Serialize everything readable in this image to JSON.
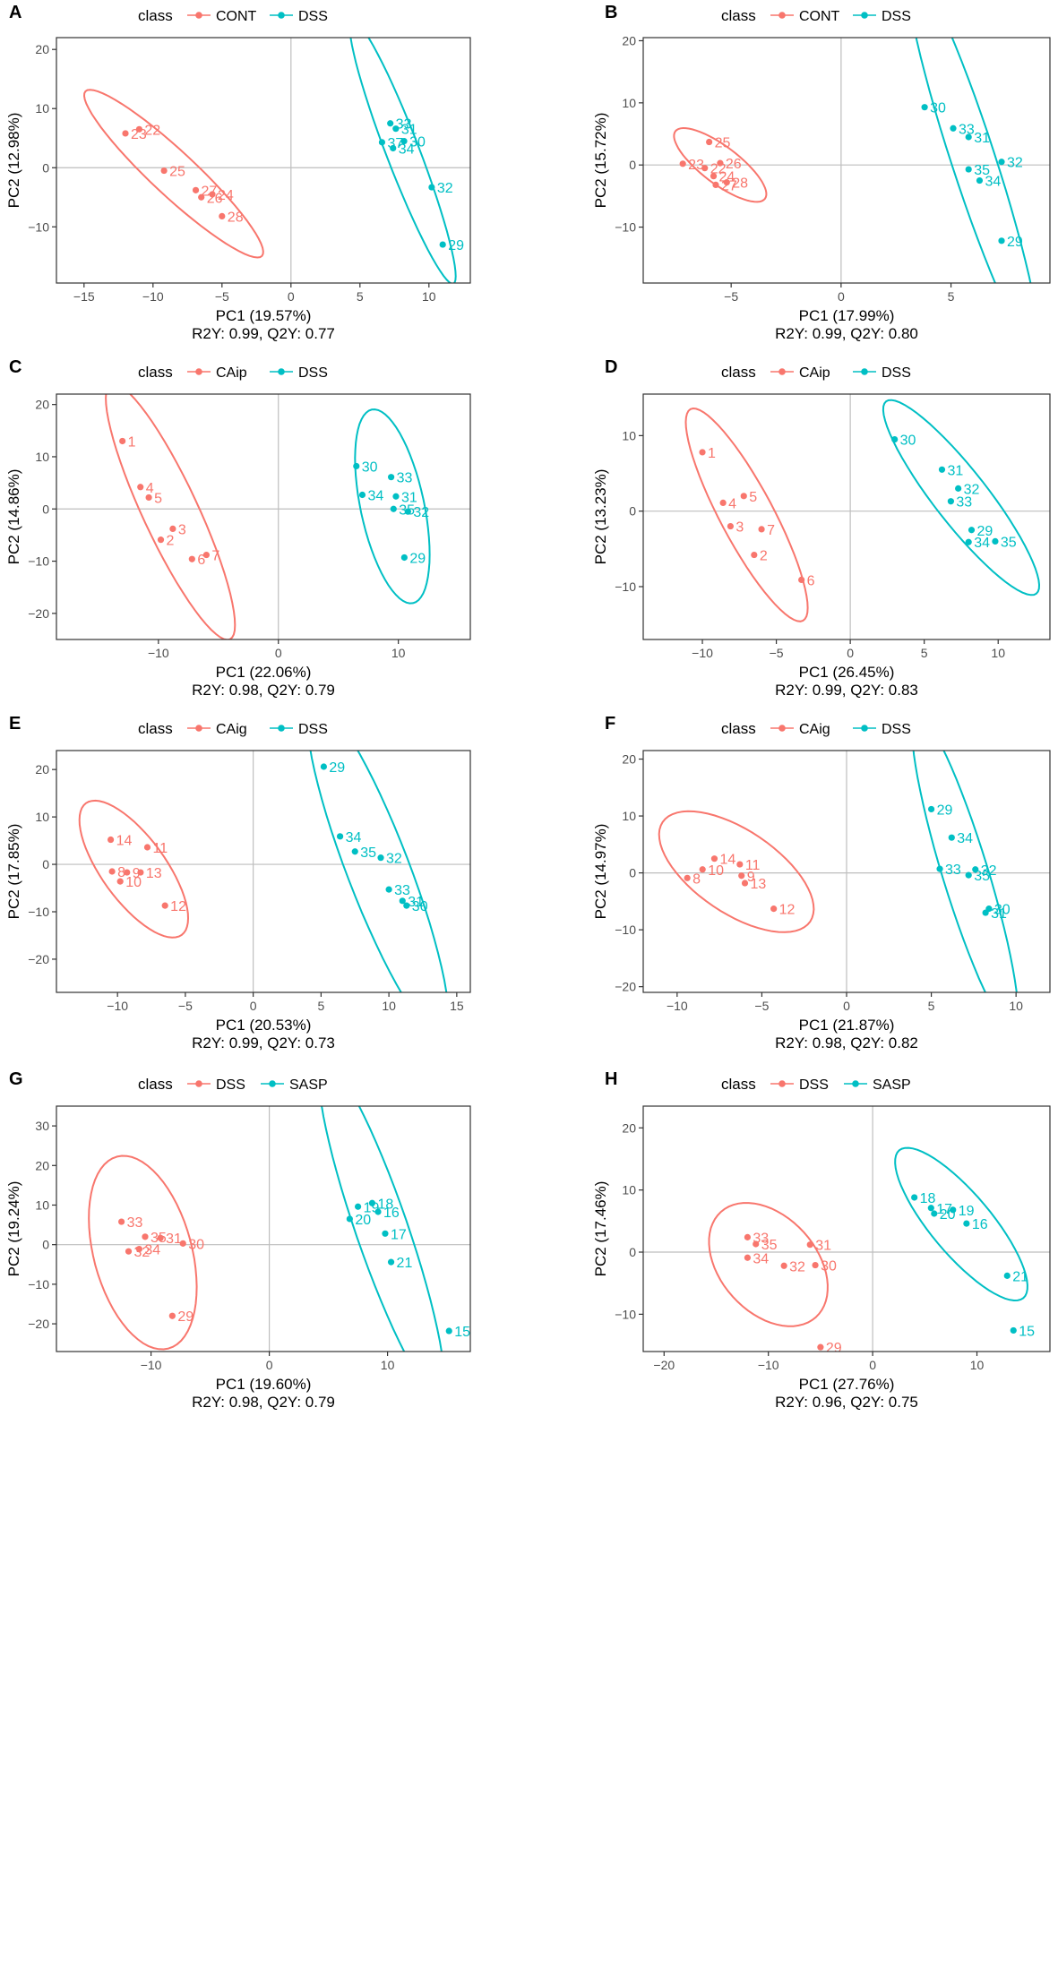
{
  "figure": {
    "colors": {
      "group1": "#F8766D",
      "group2": "#00BFC4",
      "axis": "#333333",
      "zero": "#BEBEBE"
    },
    "legend_title": "class",
    "xlabel_prefix": "PC1",
    "ylabel_prefix": "PC2"
  },
  "chart_data": [
    {
      "panel": "A",
      "type": "scatter",
      "legend": [
        "CONT",
        "DSS"
      ],
      "xlabel": "PC1 (19.57%)",
      "ylabel": "PC2 (12.98%)",
      "stats": "R2Y: 0.99, Q2Y: 0.77",
      "xlim": [
        -17,
        13
      ],
      "ylim": [
        -19.5,
        22
      ],
      "xticks": [
        -15,
        -10,
        -5,
        0,
        5,
        10
      ],
      "yticks": [
        -10,
        0,
        10,
        20
      ],
      "series": [
        {
          "name": "CONT",
          "points": [
            {
              "label": "22",
              "x": -11.0,
              "y": 6.5
            },
            {
              "label": "23",
              "x": -12.0,
              "y": 5.8
            },
            {
              "label": "25",
              "x": -9.2,
              "y": -0.5
            },
            {
              "label": "27",
              "x": -6.9,
              "y": -3.8
            },
            {
              "label": "24",
              "x": -5.7,
              "y": -4.5
            },
            {
              "label": "26",
              "x": -6.5,
              "y": -5.0
            },
            {
              "label": "28",
              "x": -5.0,
              "y": -8.2
            }
          ],
          "ellipse": {
            "cx": -8.5,
            "cy": -1.0,
            "rx": 17.5,
            "ry": 3.2,
            "angle": -43
          }
        },
        {
          "name": "DSS",
          "points": [
            {
              "label": "33",
              "x": 7.2,
              "y": 7.5
            },
            {
              "label": "31",
              "x": 7.6,
              "y": 6.6
            },
            {
              "label": "30",
              "x": 8.2,
              "y": 4.5
            },
            {
              "label": "37",
              "x": 6.6,
              "y": 4.3
            },
            {
              "label": "34",
              "x": 7.4,
              "y": 3.3
            },
            {
              "label": "32",
              "x": 10.2,
              "y": -3.3
            },
            {
              "label": "29",
              "x": 11.0,
              "y": -13.0
            }
          ],
          "ellipse": {
            "cx": 8.1,
            "cy": 2.7,
            "rx": 20.5,
            "ry": 2.4,
            "angle": -69
          }
        }
      ]
    },
    {
      "panel": "B",
      "type": "scatter",
      "legend": [
        "CONT",
        "DSS"
      ],
      "xlabel": "PC1 (17.99%)",
      "ylabel": "PC2 (15.72%)",
      "stats": "R2Y: 0.99, Q2Y: 0.80",
      "xlim": [
        -9,
        9.5
      ],
      "ylim": [
        -19,
        20.5
      ],
      "xticks": [
        -5,
        0,
        5
      ],
      "yticks": [
        -10,
        0,
        10,
        20
      ],
      "series": [
        {
          "name": "CONT",
          "points": [
            {
              "label": "25",
              "x": -6.0,
              "y": 3.7
            },
            {
              "label": "23",
              "x": -7.2,
              "y": 0.2
            },
            {
              "label": "26",
              "x": -5.5,
              "y": 0.3
            },
            {
              "label": "22",
              "x": -6.2,
              "y": -0.5
            },
            {
              "label": "24",
              "x": -5.8,
              "y": -1.8
            },
            {
              "label": "28",
              "x": -5.2,
              "y": -2.8
            },
            {
              "label": "27",
              "x": -5.7,
              "y": -3.2
            }
          ],
          "ellipse": {
            "cx": -5.5,
            "cy": 0.0,
            "rx": 5.1,
            "ry": 1.7,
            "angle": -37
          }
        },
        {
          "name": "DSS",
          "points": [
            {
              "label": "30",
              "x": 3.8,
              "y": 9.3
            },
            {
              "label": "33",
              "x": 5.1,
              "y": 5.9
            },
            {
              "label": "31",
              "x": 5.8,
              "y": 4.5
            },
            {
              "label": "32",
              "x": 7.3,
              "y": 0.5
            },
            {
              "label": "35",
              "x": 5.8,
              "y": -0.7
            },
            {
              "label": "34",
              "x": 6.3,
              "y": -2.5
            },
            {
              "label": "29",
              "x": 7.3,
              "y": -12.2
            }
          ],
          "ellipse": {
            "cx": 6.0,
            "cy": 1.0,
            "rx": 18.5,
            "ry": 2.0,
            "angle": -72
          }
        }
      ]
    },
    {
      "panel": "C",
      "type": "scatter",
      "legend": [
        "CAip",
        "DSS"
      ],
      "xlabel": "PC1 (22.06%)",
      "ylabel": "PC2 (14.86%)",
      "stats": "R2Y: 0.98, Q2Y: 0.79",
      "xlim": [
        -18.5,
        16
      ],
      "ylim": [
        -25,
        22
      ],
      "xticks": [
        -10,
        0,
        10
      ],
      "yticks": [
        -20,
        -10,
        0,
        10,
        20
      ],
      "series": [
        {
          "name": "CAip",
          "points": [
            {
              "label": "1",
              "x": -13.0,
              "y": 13.0
            },
            {
              "label": "4",
              "x": -11.5,
              "y": 4.2
            },
            {
              "label": "5",
              "x": -10.8,
              "y": 2.2
            },
            {
              "label": "3",
              "x": -8.8,
              "y": -3.8
            },
            {
              "label": "2",
              "x": -9.8,
              "y": -5.9
            },
            {
              "label": "7",
              "x": -6.0,
              "y": -8.8
            },
            {
              "label": "6",
              "x": -7.2,
              "y": -9.6
            }
          ],
          "ellipse": {
            "cx": -9.0,
            "cy": -0.5,
            "rx": 23.5,
            "ry": 4.6,
            "angle": -65
          }
        },
        {
          "name": "DSS",
          "points": [
            {
              "label": "30",
              "x": 6.5,
              "y": 8.2
            },
            {
              "label": "33",
              "x": 9.4,
              "y": 6.1
            },
            {
              "label": "34",
              "x": 7.0,
              "y": 2.7
            },
            {
              "label": "31",
              "x": 9.8,
              "y": 2.4
            },
            {
              "label": "35",
              "x": 9.6,
              "y": 0.0
            },
            {
              "label": "32",
              "x": 10.8,
              "y": -0.5
            },
            {
              "label": "29",
              "x": 10.5,
              "y": -9.3
            }
          ],
          "ellipse": {
            "cx": 9.5,
            "cy": 0.5,
            "rx": 16.5,
            "ry": 5.3,
            "angle": -78
          }
        }
      ]
    },
    {
      "panel": "D",
      "type": "scatter",
      "legend": [
        "CAip",
        "DSS"
      ],
      "xlabel": "PC1 (26.45%)",
      "ylabel": "PC2 (13.23%)",
      "stats": "R2Y: 0.99, Q2Y: 0.83",
      "xlim": [
        -14,
        13.5
      ],
      "ylim": [
        -17,
        15.5
      ],
      "xticks": [
        -10,
        -5,
        0,
        5,
        10
      ],
      "yticks": [
        -10,
        0,
        10
      ],
      "series": [
        {
          "name": "CAip",
          "points": [
            {
              "label": "1",
              "x": -10.0,
              "y": 7.8
            },
            {
              "label": "5",
              "x": -7.2,
              "y": 2.0
            },
            {
              "label": "4",
              "x": -8.6,
              "y": 1.1
            },
            {
              "label": "3",
              "x": -8.1,
              "y": -2.0
            },
            {
              "label": "7",
              "x": -6.0,
              "y": -2.4
            },
            {
              "label": "2",
              "x": -6.5,
              "y": -5.8
            },
            {
              "label": "6",
              "x": -3.3,
              "y": -9.1
            }
          ],
          "ellipse": {
            "cx": -7.0,
            "cy": -0.5,
            "rx": 16.2,
            "ry": 3.6,
            "angle": -62
          }
        },
        {
          "name": "DSS",
          "points": [
            {
              "label": "30",
              "x": 3.0,
              "y": 9.5
            },
            {
              "label": "31",
              "x": 6.2,
              "y": 5.5
            },
            {
              "label": "32",
              "x": 7.3,
              "y": 3.0
            },
            {
              "label": "33",
              "x": 6.8,
              "y": 1.3
            },
            {
              "label": "29",
              "x": 8.2,
              "y": -2.5
            },
            {
              "label": "35",
              "x": 9.8,
              "y": -4.0
            },
            {
              "label": "34",
              "x": 8.0,
              "y": -4.1
            }
          ],
          "ellipse": {
            "cx": 7.5,
            "cy": 1.8,
            "rx": 16.5,
            "ry": 3.6,
            "angle": -52
          }
        }
      ]
    },
    {
      "panel": "E",
      "type": "scatter",
      "legend": [
        "CAig",
        "DSS"
      ],
      "xlabel": "PC1 (20.53%)",
      "ylabel": "PC2 (17.85%)",
      "stats": "R2Y: 0.99, Q2Y: 0.73",
      "xlim": [
        -14.5,
        16
      ],
      "ylim": [
        -27,
        24
      ],
      "xticks": [
        -10,
        -5,
        0,
        5,
        10,
        15
      ],
      "yticks": [
        -20,
        -10,
        0,
        10,
        20
      ],
      "series": [
        {
          "name": "CAig",
          "points": [
            {
              "label": "14",
              "x": -10.5,
              "y": 5.2
            },
            {
              "label": "11",
              "x": -7.8,
              "y": 3.6
            },
            {
              "label": "8",
              "x": -10.4,
              "y": -1.5
            },
            {
              "label": "9",
              "x": -9.3,
              "y": -1.7
            },
            {
              "label": "13",
              "x": -8.3,
              "y": -1.7
            },
            {
              "label": "10",
              "x": -9.8,
              "y": -3.6
            },
            {
              "label": "12",
              "x": -6.5,
              "y": -8.7
            }
          ],
          "ellipse": {
            "cx": -8.8,
            "cy": -1.0,
            "rx": 12.0,
            "ry": 4.7,
            "angle": -54
          }
        },
        {
          "name": "DSS",
          "points": [
            {
              "label": "29",
              "x": 5.2,
              "y": 20.6
            },
            {
              "label": "34",
              "x": 6.4,
              "y": 5.9
            },
            {
              "label": "35",
              "x": 7.5,
              "y": 2.7
            },
            {
              "label": "32",
              "x": 9.4,
              "y": 1.4
            },
            {
              "label": "33",
              "x": 10.0,
              "y": -5.3
            },
            {
              "label": "31",
              "x": 11.0,
              "y": -7.7
            },
            {
              "label": "30",
              "x": 11.3,
              "y": -8.7
            }
          ],
          "ellipse": {
            "cx": 9.2,
            "cy": -1.0,
            "rx": 26.5,
            "ry": 4.6,
            "angle": -69
          }
        }
      ]
    },
    {
      "panel": "F",
      "type": "scatter",
      "legend": [
        "CAig",
        "DSS"
      ],
      "xlabel": "PC1 (21.87%)",
      "ylabel": "PC2 (14.97%)",
      "stats": "R2Y: 0.98, Q2Y: 0.82",
      "xlim": [
        -12,
        12
      ],
      "ylim": [
        -21,
        21.5
      ],
      "xticks": [
        -10,
        -5,
        0,
        5,
        10
      ],
      "yticks": [
        -20,
        -10,
        0,
        10,
        20
      ],
      "series": [
        {
          "name": "CAig",
          "points": [
            {
              "label": "14",
              "x": -7.8,
              "y": 2.5
            },
            {
              "label": "11",
              "x": -6.3,
              "y": 1.5
            },
            {
              "label": "10",
              "x": -8.5,
              "y": 0.6
            },
            {
              "label": "9",
              "x": -6.2,
              "y": -0.5
            },
            {
              "label": "8",
              "x": -9.4,
              "y": -0.9
            },
            {
              "label": "13",
              "x": -6.0,
              "y": -1.8
            },
            {
              "label": "12",
              "x": -4.3,
              "y": -6.3
            }
          ],
          "ellipse": {
            "cx": -6.5,
            "cy": 0.2,
            "rx": 10.5,
            "ry": 4.9,
            "angle": -34
          }
        },
        {
          "name": "DSS",
          "points": [
            {
              "label": "29",
              "x": 5.0,
              "y": 11.2
            },
            {
              "label": "34",
              "x": 6.2,
              "y": 6.2
            },
            {
              "label": "33",
              "x": 5.5,
              "y": 0.7
            },
            {
              "label": "32",
              "x": 7.6,
              "y": 0.6
            },
            {
              "label": "35",
              "x": 7.2,
              "y": -0.4
            },
            {
              "label": "30",
              "x": 8.4,
              "y": -6.3
            },
            {
              "label": "31",
              "x": 8.2,
              "y": -7.0
            }
          ],
          "ellipse": {
            "cx": 7.0,
            "cy": 0.0,
            "rx": 19.5,
            "ry": 2.7,
            "angle": -73
          }
        }
      ]
    },
    {
      "panel": "G",
      "type": "scatter",
      "legend": [
        "DSS",
        "SASP"
      ],
      "xlabel": "PC1 (19.60%)",
      "ylabel": "PC2 (19.24%)",
      "stats": "R2Y: 0.98, Q2Y: 0.79",
      "xlim": [
        -18,
        17
      ],
      "ylim": [
        -27,
        35
      ],
      "xticks": [
        -10,
        0,
        10
      ],
      "yticks": [
        -20,
        -10,
        0,
        10,
        20,
        30
      ],
      "series": [
        {
          "name": "DSS",
          "points": [
            {
              "label": "33",
              "x": -12.5,
              "y": 5.8
            },
            {
              "label": "35",
              "x": -10.5,
              "y": 2.0
            },
            {
              "label": "31",
              "x": -9.2,
              "y": 1.7
            },
            {
              "label": "30",
              "x": -7.3,
              "y": 0.3
            },
            {
              "label": "34",
              "x": -11.0,
              "y": -1.1
            },
            {
              "label": "32",
              "x": -11.9,
              "y": -1.7
            },
            {
              "label": "29",
              "x": -8.2,
              "y": -18.0
            }
          ],
          "ellipse": {
            "cx": -10.7,
            "cy": -2.0,
            "rx": 16.8,
            "ry": 8.3,
            "angle": -75
          }
        },
        {
          "name": "SASP",
          "points": [
            {
              "label": "18",
              "x": 8.7,
              "y": 10.5
            },
            {
              "label": "19",
              "x": 7.5,
              "y": 9.6
            },
            {
              "label": "16",
              "x": 9.2,
              "y": 8.3
            },
            {
              "label": "20",
              "x": 6.8,
              "y": 6.5
            },
            {
              "label": "17",
              "x": 9.8,
              "y": 2.8
            },
            {
              "label": "21",
              "x": 10.3,
              "y": -4.4
            },
            {
              "label": "15",
              "x": 15.2,
              "y": -21.8
            }
          ],
          "ellipse": {
            "cx": 9.5,
            "cy": 4.0,
            "rx": 30.0,
            "ry": 4.4,
            "angle": -71
          }
        }
      ]
    },
    {
      "panel": "H",
      "type": "scatter",
      "legend": [
        "DSS",
        "SASP"
      ],
      "xlabel": "PC1 (27.76%)",
      "ylabel": "PC2 (17.46%)",
      "stats": "R2Y: 0.96, Q2Y: 0.75",
      "xlim": [
        -22,
        17
      ],
      "ylim": [
        -16,
        23.5
      ],
      "xticks": [
        -20,
        -10,
        0,
        10
      ],
      "yticks": [
        -10,
        0,
        10,
        20
      ],
      "series": [
        {
          "name": "DSS",
          "points": [
            {
              "label": "33",
              "x": -12.0,
              "y": 2.4
            },
            {
              "label": "35",
              "x": -11.2,
              "y": 1.3
            },
            {
              "label": "31",
              "x": -6.0,
              "y": 1.2
            },
            {
              "label": "34",
              "x": -12.0,
              "y": -0.9
            },
            {
              "label": "32",
              "x": -8.5,
              "y": -2.2
            },
            {
              "label": "30",
              "x": -5.5,
              "y": -2.1
            },
            {
              "label": "29",
              "x": -5.0,
              "y": -15.3
            }
          ],
          "ellipse": {
            "cx": -10.0,
            "cy": -2.0,
            "rx": 13.6,
            "ry": 9.2,
            "angle": -48
          }
        },
        {
          "name": "SASP",
          "points": [
            {
              "label": "18",
              "x": 4.0,
              "y": 8.8
            },
            {
              "label": "17",
              "x": 5.6,
              "y": 7.1
            },
            {
              "label": "19",
              "x": 7.7,
              "y": 6.8
            },
            {
              "label": "20",
              "x": 5.9,
              "y": 6.2
            },
            {
              "label": "16",
              "x": 9.0,
              "y": 4.6
            },
            {
              "label": "21",
              "x": 12.9,
              "y": -3.8
            },
            {
              "label": "15",
              "x": 13.5,
              "y": -12.6
            }
          ],
          "ellipse": {
            "cx": 8.5,
            "cy": 4.5,
            "rx": 18.5,
            "ry": 5.8,
            "angle": -50
          }
        }
      ]
    }
  ]
}
